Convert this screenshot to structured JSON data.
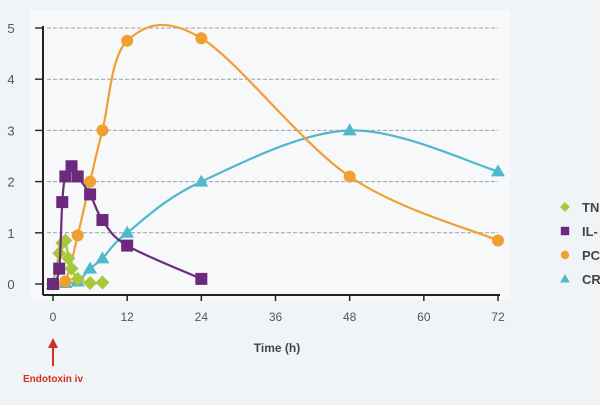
{
  "chart_data": {
    "type": "line",
    "title": "",
    "xlabel": "Time (h)",
    "ylabel": "",
    "xlim": [
      0,
      72
    ],
    "ylim": [
      0,
      5
    ],
    "xticks": [
      0,
      12,
      24,
      36,
      48,
      60,
      72
    ],
    "yticks": [
      0,
      1,
      2,
      3,
      4,
      5
    ],
    "grid": "horizontal dashed",
    "legend_position": "right",
    "annotation": "Endotoxin iv",
    "series": [
      {
        "name": "TN",
        "color": "#a8c83a",
        "marker": "diamond",
        "x": [
          0,
          1,
          1.5,
          2,
          2.5,
          3,
          4,
          6,
          8
        ],
        "y": [
          0,
          0.6,
          0.8,
          0.85,
          0.5,
          0.3,
          0.1,
          0.02,
          0.03
        ]
      },
      {
        "name": "IL-",
        "color": "#6b2a7e",
        "marker": "square",
        "x": [
          0,
          1,
          1.5,
          2,
          3,
          4,
          6,
          8,
          12,
          24
        ],
        "y": [
          0,
          0.3,
          1.6,
          2.1,
          2.3,
          2.1,
          1.75,
          1.25,
          0.75,
          0.1
        ]
      },
      {
        "name": "PC",
        "color": "#f0a030",
        "marker": "circle",
        "x": [
          0,
          2,
          4,
          6,
          8,
          12,
          24,
          48,
          72
        ],
        "y": [
          0,
          0.05,
          0.95,
          2.0,
          3.0,
          4.75,
          4.8,
          2.1,
          0.85
        ]
      },
      {
        "name": "CR",
        "color": "#4fb8cc",
        "marker": "triangle",
        "x": [
          0,
          2,
          4,
          6,
          8,
          12,
          24,
          48,
          72
        ],
        "y": [
          0,
          0.02,
          0.05,
          0.3,
          0.5,
          1.0,
          2.0,
          3.0,
          2.2
        ]
      }
    ]
  }
}
